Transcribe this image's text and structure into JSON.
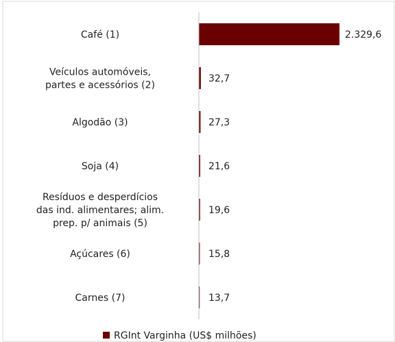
{
  "chart_data": {
    "type": "barh",
    "categories": [
      "Café (1)",
      "Veículos automóveis,\npartes e acessórios (2)",
      "Algodão (3)",
      "Soja (4)",
      "Resíduos e desperdícios\ndas ind. alimentares; alim.\nprep. p/ animais (5)",
      "Açúcares (6)",
      "Carnes (7)"
    ],
    "series": [
      {
        "name": "RGInt Varginha (US$ milhões)",
        "color": "#6b0000",
        "values": [
          2329.6,
          32.7,
          27.3,
          21.6,
          19.6,
          15.8,
          13.7
        ],
        "value_labels": [
          "2.329,6",
          "32,7",
          "27,3",
          "21,6",
          "19,6",
          "15,8",
          "13,7"
        ]
      }
    ],
    "legend": "bottom"
  }
}
